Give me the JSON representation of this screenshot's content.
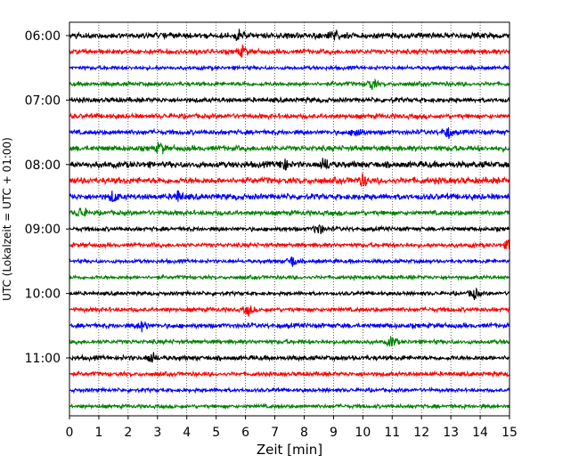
{
  "chart_data": {
    "type": "line",
    "title": "",
    "xlabel": "Zeit  [min]",
    "ylabel": "UTC (Lokalzeit = UTC + 01:00)",
    "xlim": [
      0,
      15
    ],
    "x_ticks": [
      0,
      1,
      2,
      3,
      4,
      5,
      6,
      7,
      8,
      9,
      10,
      11,
      12,
      13,
      14,
      15
    ],
    "x_tick_labels": [
      "0",
      "1",
      "2",
      "3",
      "4",
      "5",
      "6",
      "7",
      "8",
      "9",
      "10",
      "11",
      "12",
      "13",
      "14",
      "15"
    ],
    "y_tick_labels": [
      "06:00",
      "07:00",
      "08:00",
      "09:00",
      "10:00",
      "11:00"
    ],
    "grid": "vertical dotted",
    "colors": [
      "#000000",
      "#ff0000",
      "#0000ff",
      "#008000"
    ],
    "series": [
      {
        "start": "06:00",
        "color": "#000000",
        "amplitude": 0.55,
        "events": [
          5.8,
          9.0
        ]
      },
      {
        "start": "06:15",
        "color": "#ff0000",
        "amplitude": 0.45,
        "events": [
          5.9
        ]
      },
      {
        "start": "06:30",
        "color": "#0000ff",
        "amplitude": 0.35,
        "events": []
      },
      {
        "start": "06:45",
        "color": "#008000",
        "amplitude": 0.4,
        "events": [
          10.3
        ]
      },
      {
        "start": "07:00",
        "color": "#000000",
        "amplitude": 0.45,
        "events": []
      },
      {
        "start": "07:15",
        "color": "#ff0000",
        "amplitude": 0.45,
        "events": []
      },
      {
        "start": "07:30",
        "color": "#0000ff",
        "amplitude": 0.45,
        "events": [
          9.8,
          12.9
        ]
      },
      {
        "start": "07:45",
        "color": "#008000",
        "amplitude": 0.5,
        "events": [
          3.1
        ]
      },
      {
        "start": "08:00",
        "color": "#000000",
        "amplitude": 0.6,
        "events": [
          7.3,
          8.7
        ]
      },
      {
        "start": "08:15",
        "color": "#ff0000",
        "amplitude": 0.6,
        "events": [
          10.0
        ]
      },
      {
        "start": "08:30",
        "color": "#0000ff",
        "amplitude": 0.55,
        "events": [
          1.5,
          3.7
        ]
      },
      {
        "start": "08:45",
        "color": "#008000",
        "amplitude": 0.45,
        "events": [
          0.4
        ]
      },
      {
        "start": "09:00",
        "color": "#000000",
        "amplitude": 0.4,
        "events": [
          8.5
        ]
      },
      {
        "start": "09:15",
        "color": "#ff0000",
        "amplitude": 0.4,
        "events": [
          15.0
        ]
      },
      {
        "start": "09:30",
        "color": "#0000ff",
        "amplitude": 0.35,
        "events": [
          7.6
        ]
      },
      {
        "start": "09:45",
        "color": "#008000",
        "amplitude": 0.35,
        "events": []
      },
      {
        "start": "10:00",
        "color": "#000000",
        "amplitude": 0.35,
        "events": [
          13.8
        ]
      },
      {
        "start": "10:15",
        "color": "#ff0000",
        "amplitude": 0.4,
        "events": [
          6.1
        ]
      },
      {
        "start": "10:30",
        "color": "#0000ff",
        "amplitude": 0.45,
        "events": [
          2.5
        ]
      },
      {
        "start": "10:45",
        "color": "#008000",
        "amplitude": 0.4,
        "events": [
          11.0
        ]
      },
      {
        "start": "11:00",
        "color": "#000000",
        "amplitude": 0.45,
        "events": [
          2.8
        ]
      },
      {
        "start": "11:15",
        "color": "#ff0000",
        "amplitude": 0.4,
        "events": []
      },
      {
        "start": "11:30",
        "color": "#0000ff",
        "amplitude": 0.35,
        "events": []
      },
      {
        "start": "11:45",
        "color": "#008000",
        "amplitude": 0.35,
        "events": []
      }
    ]
  }
}
